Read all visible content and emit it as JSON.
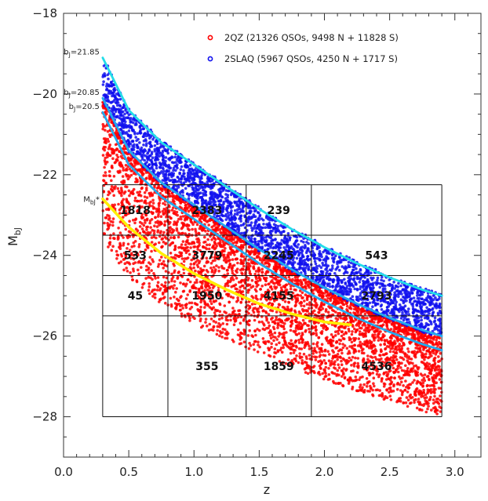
{
  "chart_data": {
    "type": "scatter",
    "xlabel": "z",
    "ylabel": "M",
    "ylabel_sub": "bJ",
    "xlim": [
      0.0,
      3.2
    ],
    "ylim": [
      -18,
      -29
    ],
    "x_ticks": [
      "0.0",
      "0.5",
      "1.0",
      "1.5",
      "2.0",
      "2.5",
      "3.0"
    ],
    "x_tick_values": [
      0,
      0.5,
      1.0,
      1.5,
      2.0,
      2.5,
      3.0
    ],
    "y_ticks": [
      "−18",
      "−20",
      "−22",
      "−24",
      "−26",
      "−28"
    ],
    "y_tick_values": [
      -18,
      -20,
      -22,
      -24,
      -26,
      -28
    ],
    "legend": [
      {
        "label": "2QZ (21326 QSOs, 9498 N + 11828 S)",
        "color": "#ff0000"
      },
      {
        "label": "2SLAQ (5967 QSOs, 4250 N + 1717 S)",
        "color": "#1010ee"
      }
    ],
    "series": [
      {
        "name": "2QZ (21326 QSOs, 9498 N + 11828 S)",
        "color": "#ff0000",
        "note_values": "dense point cloud from z=0.3 to 2.9, between the b_J=20.85 limit and Mbj ~ -28.5"
      },
      {
        "name": "2SLAQ (5967 QSOs, 4250 N + 1717 S)",
        "color": "#1010ee",
        "note_values": "dense point cloud between the b_J=20.85 and b_J=21.85 limits"
      }
    ],
    "curves": [
      {
        "label": "b",
        "sub": "J",
        "eq": "=21.85",
        "color": "#22dde8",
        "points": [
          [
            0.3,
            -19.1
          ],
          [
            0.5,
            -20.4
          ],
          [
            0.75,
            -21.2
          ],
          [
            1.0,
            -21.75
          ],
          [
            1.25,
            -22.3
          ],
          [
            1.5,
            -22.85
          ],
          [
            1.75,
            -23.35
          ],
          [
            2.0,
            -23.8
          ],
          [
            2.25,
            -24.2
          ],
          [
            2.5,
            -24.55
          ],
          [
            2.75,
            -24.85
          ],
          [
            2.9,
            -25.0
          ]
        ]
      },
      {
        "label": "b",
        "sub": "J",
        "eq": "=20.85",
        "color": "#22aaee",
        "points": [
          [
            0.3,
            -20.1
          ],
          [
            0.5,
            -21.4
          ],
          [
            0.75,
            -22.2
          ],
          [
            1.0,
            -22.75
          ],
          [
            1.25,
            -23.3
          ],
          [
            1.5,
            -23.85
          ],
          [
            1.75,
            -24.35
          ],
          [
            2.0,
            -24.8
          ],
          [
            2.25,
            -25.2
          ],
          [
            2.5,
            -25.55
          ],
          [
            2.75,
            -25.85
          ],
          [
            2.9,
            -26.0
          ]
        ]
      },
      {
        "label": "b",
        "sub": "J",
        "eq": "=20.5",
        "color": "#22aaee",
        "points": [
          [
            0.3,
            -20.45
          ],
          [
            0.5,
            -21.75
          ],
          [
            0.75,
            -22.55
          ],
          [
            1.0,
            -23.1
          ],
          [
            1.25,
            -23.65
          ],
          [
            1.5,
            -24.2
          ],
          [
            1.75,
            -24.7
          ],
          [
            2.0,
            -25.15
          ],
          [
            2.25,
            -25.55
          ],
          [
            2.5,
            -25.9
          ],
          [
            2.75,
            -26.2
          ],
          [
            2.9,
            -26.35
          ]
        ]
      },
      {
        "label": "M",
        "sub": "bJ",
        "eq": "*",
        "color": "#ffee00",
        "points": [
          [
            0.3,
            -22.6
          ],
          [
            0.5,
            -23.3
          ],
          [
            0.75,
            -23.95
          ],
          [
            1.0,
            -24.45
          ],
          [
            1.25,
            -24.85
          ],
          [
            1.5,
            -25.2
          ],
          [
            1.75,
            -25.45
          ],
          [
            2.0,
            -25.65
          ],
          [
            2.2,
            -25.72
          ]
        ]
      }
    ],
    "grid_cells": {
      "z_edges": [
        0.3,
        0.8,
        1.4,
        1.9,
        2.9
      ],
      "mag_edges": [
        -22.25,
        -23.5,
        -24.5,
        -25.5,
        -28.0
      ],
      "counts": [
        {
          "z_bin": 0,
          "mag_bin": 0,
          "value": "1818"
        },
        {
          "z_bin": 1,
          "mag_bin": 0,
          "value": "2383"
        },
        {
          "z_bin": 2,
          "mag_bin": 0,
          "value": "239"
        },
        {
          "z_bin": 0,
          "mag_bin": 1,
          "value": "533"
        },
        {
          "z_bin": 1,
          "mag_bin": 1,
          "value": "3779"
        },
        {
          "z_bin": 2,
          "mag_bin": 1,
          "value": "2245"
        },
        {
          "z_bin": 3,
          "mag_bin": 1,
          "value": "543"
        },
        {
          "z_bin": 0,
          "mag_bin": 2,
          "value": "45"
        },
        {
          "z_bin": 1,
          "mag_bin": 2,
          "value": "1950"
        },
        {
          "z_bin": 2,
          "mag_bin": 2,
          "value": "4155"
        },
        {
          "z_bin": 3,
          "mag_bin": 2,
          "value": "2793"
        },
        {
          "z_bin": 1,
          "mag_bin": 3,
          "value": "355"
        },
        {
          "z_bin": 2,
          "mag_bin": 3,
          "value": "1859"
        },
        {
          "z_bin": 3,
          "mag_bin": 3,
          "value": "4536"
        }
      ]
    },
    "grid": false,
    "legend_position": "top-right"
  }
}
